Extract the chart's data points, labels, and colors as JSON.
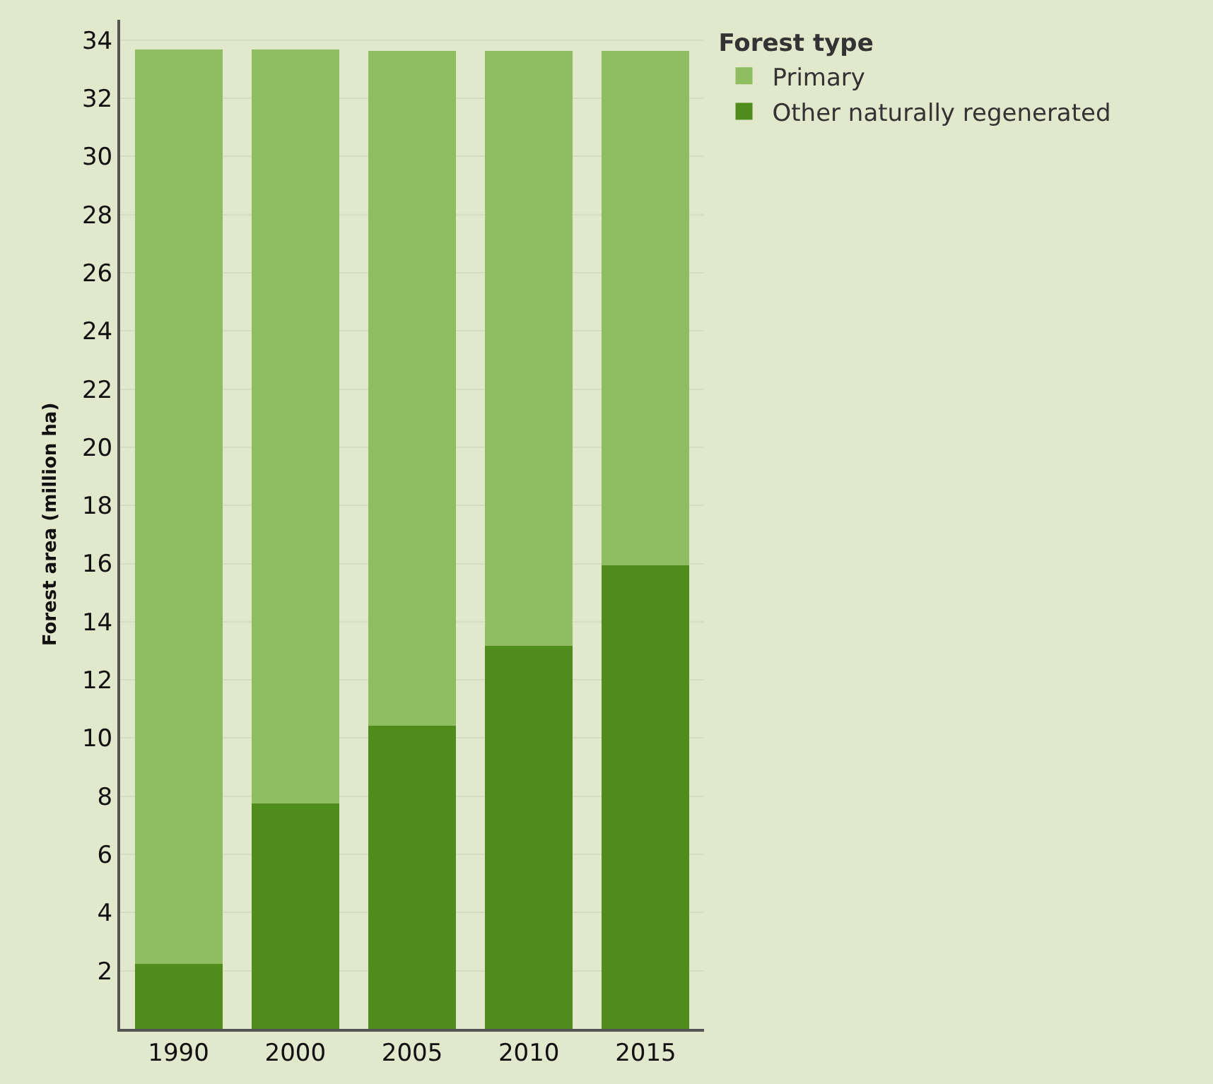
{
  "chart_data": {
    "type": "bar",
    "stacked": true,
    "ylabel": "Forest area (million ha)",
    "legend_title": "Forest type",
    "categories": [
      "1990",
      "2000",
      "2005",
      "2010",
      "2015"
    ],
    "series": [
      {
        "name": "Other naturally regenerated",
        "color": "#4f8c1b",
        "values": [
          2.24,
          7.75,
          10.43,
          13.16,
          15.94
        ]
      },
      {
        "name": "Primary",
        "color": "#91bd61",
        "values": [
          31.44,
          25.93,
          23.2,
          20.47,
          17.69
        ]
      }
    ],
    "ylim": [
      0,
      34.7
    ],
    "yticks": [
      2,
      4,
      6,
      8,
      10,
      12,
      14,
      16,
      18,
      20,
      22,
      24,
      26,
      28,
      30,
      32,
      34
    ],
    "grid": "y",
    "legend": "top right"
  }
}
